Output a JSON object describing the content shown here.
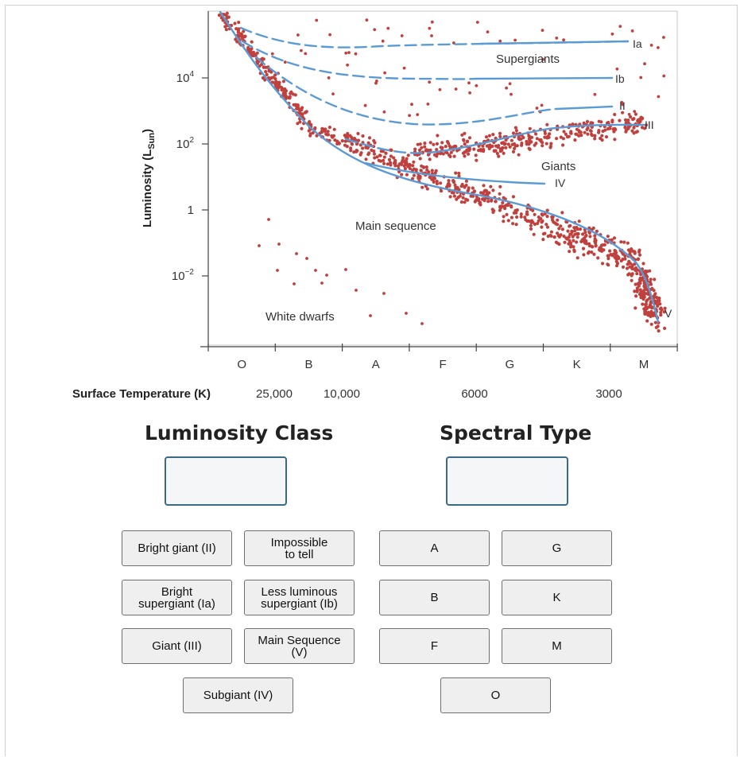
{
  "chart_data": {
    "type": "scatter",
    "ylabel_main": "Luminosity (L",
    "ylabel_sub": "Sun",
    "ylabel_close": ")",
    "y_ticks": [
      {
        "label_base": "10",
        "label_exp": "4",
        "value": 10000
      },
      {
        "label_base": "10",
        "label_exp": "2",
        "value": 100
      },
      {
        "label_base": "1",
        "label_exp": "",
        "value": 1
      },
      {
        "label_base": "10",
        "label_exp": "−2",
        "value": 0.01
      }
    ],
    "y_scale": "log",
    "ylim": [
      0.0001,
      2000000
    ],
    "spectral_classes": [
      "O",
      "B",
      "A",
      "F",
      "G",
      "K",
      "M"
    ],
    "xlabel": "Surface Temperature (K)",
    "temperature_ticks": [
      {
        "label": "25,000",
        "value": 25000
      },
      {
        "label": "10,000",
        "value": 10000
      },
      {
        "label": "6000",
        "value": 6000
      },
      {
        "label": "3000",
        "value": 3000
      }
    ],
    "luminosity_class_labels": {
      "ia": "Ia",
      "ib": "Ib",
      "ii": "II",
      "iii": "III",
      "iv": "IV",
      "v": "V"
    },
    "region_labels": {
      "supergiants": "Supergiants",
      "giants": "Giants",
      "main_sequence": "Main sequence",
      "white_dwarfs": "White dwarfs"
    },
    "point_color": "#c0403d",
    "line_color": "#5b9bd5"
  },
  "luminosity_class": {
    "title": "Luminosity Class",
    "options": [
      "Bright giant (II)",
      "Impossible\nto tell",
      "Bright\nsupergiant (Ia)",
      "Less luminous\nsupergiant (Ib)",
      "Giant (III)",
      "Main Sequence\n(V)",
      "Subgiant (IV)"
    ]
  },
  "spectral_type": {
    "title": "Spectral Type",
    "options": [
      "A",
      "G",
      "B",
      "K",
      "F",
      "M",
      "O"
    ]
  }
}
